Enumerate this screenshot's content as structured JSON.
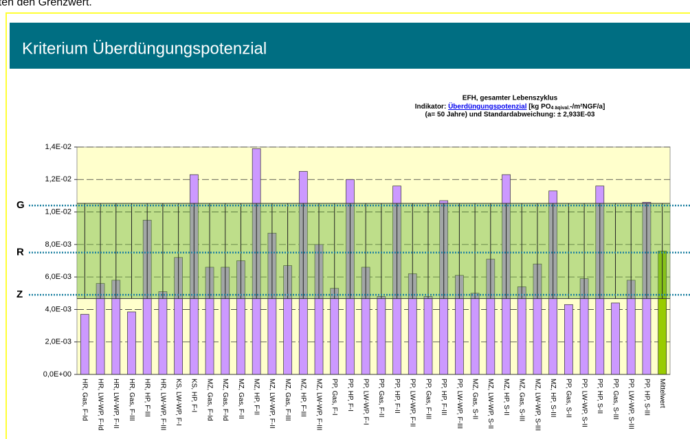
{
  "top_text": "reiten den Grenzwert.",
  "header": {
    "title": "Kriterium Überdüngungspotenzial"
  },
  "chart_data": {
    "type": "bar",
    "title": "EFH, gesamter Lebenszyklus",
    "subtitle": {
      "prefix": "Indikator: ",
      "link": "Überdüngungspotenzial",
      "unit": " [kg PO",
      "unit_sub": "4 äqival.",
      "unit_end": "-/m²NGF/a]",
      "line3": "(a= 50 Jahre) und Standardabweichung: ± 2,933E-03"
    },
    "categories": [
      "HR, Gas, F-Id",
      "HR, LW-WP, F-Id",
      "HR, LW-WP, F-II",
      "HR, Gas, F-III",
      "HR, HP, F-III",
      "HR, LW-WP, F-III",
      "KS, LW-WP, F-I",
      "KS, HP, F-I",
      "MZ, Gas, F-Id",
      "MZ, Gas, F-Id",
      "MZ, Gas, F-II",
      "MZ, HP, F-II",
      "MZ, LW-WP, F-II",
      "MZ, Gas, F-III",
      "MZ, HP, F-III",
      "MZ, LW-WP, F-III",
      "PP, Gas, F-I",
      "PP, HP, F-I",
      "PP, LW-WP, F-I",
      "PP, Gas, F-II",
      "PP, HP, F-II",
      "PP, LW-WP, F-II",
      "PP, Gas, F-III",
      "PP, HP, F-III",
      "PP, LW-WP, F-III",
      "MZ, Gas, S-II",
      "MZ, LW-WP, S-II",
      "MZ, HP, S-II",
      "MZ, Gas, S-III",
      "MZ, LW-WP, S-III",
      "MZ, HP, S-III",
      "PP, Gas, S-II",
      "PP, LW-WP, S-II",
      "PP, HP, S-II",
      "PP, Gas, S-III",
      "PP, LW-WP, S-III",
      "PP, HP, S-III",
      "Mittelwert"
    ],
    "values": [
      0.0037,
      0.0056,
      0.0058,
      0.00385,
      0.0095,
      0.0051,
      0.0072,
      0.0123,
      0.0066,
      0.0066,
      0.007,
      0.0139,
      0.0087,
      0.0067,
      0.0125,
      0.008,
      0.0053,
      0.012,
      0.0066,
      0.0048,
      0.0116,
      0.0062,
      0.0048,
      0.0107,
      0.0061,
      0.005,
      0.0071,
      0.0123,
      0.0054,
      0.0068,
      0.0113,
      0.0043,
      0.0059,
      0.0116,
      0.0044,
      0.0058,
      0.0106,
      0.0076
    ],
    "color": "#cc99ff",
    "mean_color": "#99cc00",
    "std": 0.002933,
    "ylim": [
      0,
      0.014
    ],
    "yticks": [
      {
        "value": 0,
        "label": "0,0E+00"
      },
      {
        "value": 0.002,
        "label": "2,0E-03"
      },
      {
        "value": 0.004,
        "label": "4,0E-03"
      },
      {
        "value": 0.006,
        "label": "6,0E-03"
      },
      {
        "value": 0.008,
        "label": "8,0E-03"
      },
      {
        "value": 0.01,
        "label": "1,0E-02"
      },
      {
        "value": 0.012,
        "label": "1,2E-02"
      },
      {
        "value": 0.014,
        "label": "1,4E-02"
      }
    ],
    "grid": true,
    "reference_lines": [
      {
        "label": "G",
        "value": 0.0104
      },
      {
        "label": "R",
        "value": 0.0075
      },
      {
        "label": "Z",
        "value": 0.0049
      }
    ]
  }
}
